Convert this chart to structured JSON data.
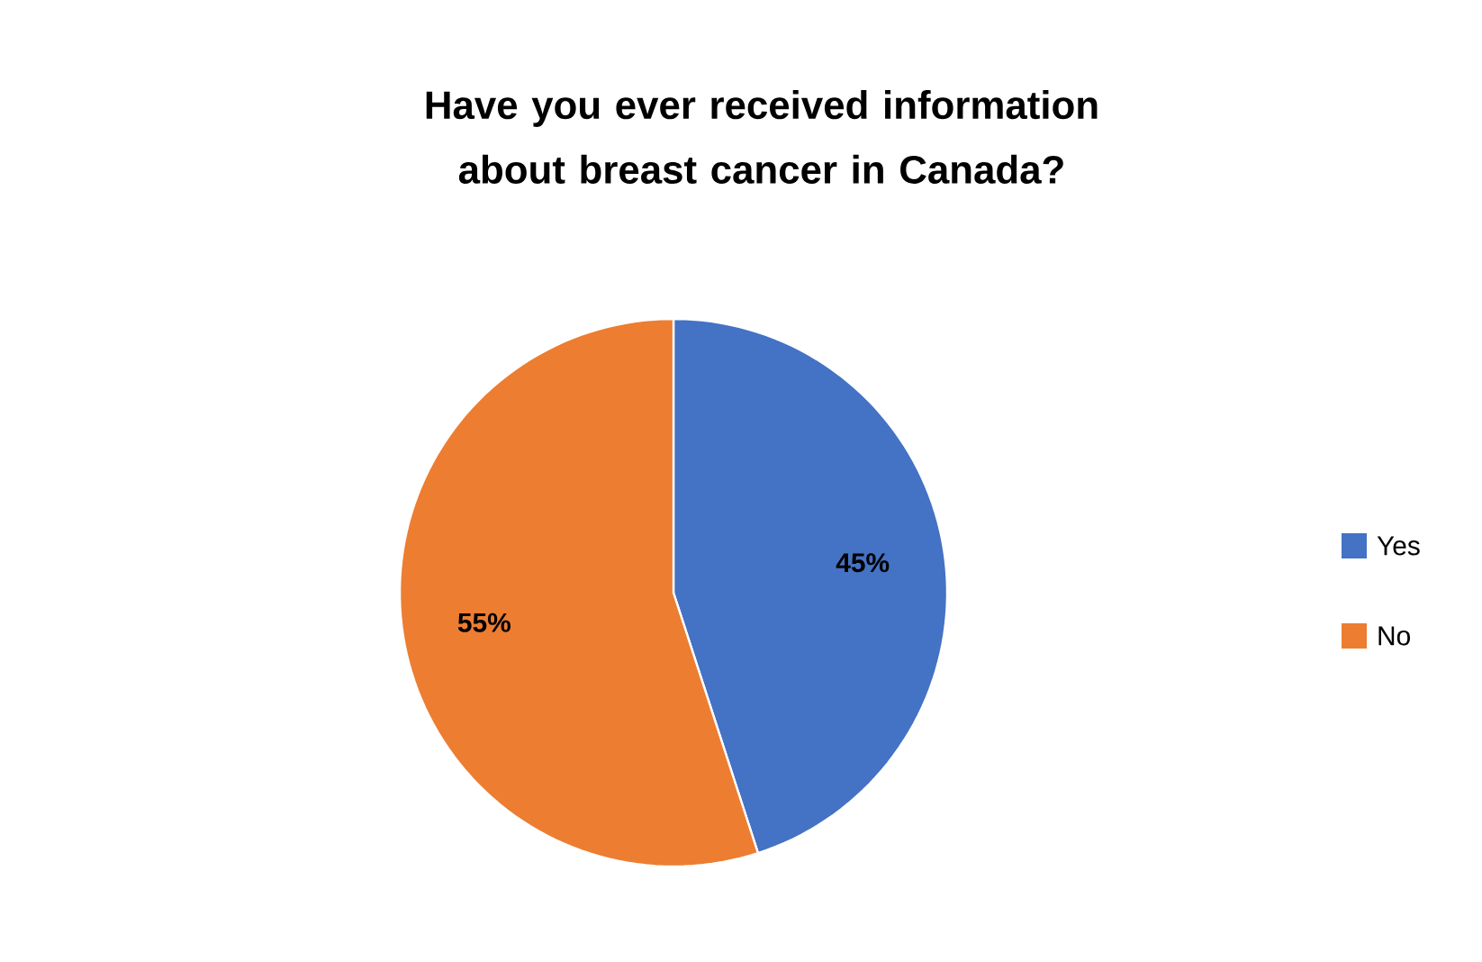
{
  "chart_data": {
    "type": "pie",
    "title": "Have you ever received information about breast cancer in Canada?",
    "categories": [
      "Yes",
      "No"
    ],
    "values": [
      45,
      55
    ],
    "colors": [
      "#4472c4",
      "#ed7d31"
    ],
    "value_labels": [
      "45%",
      "55%"
    ],
    "legend": "right"
  }
}
